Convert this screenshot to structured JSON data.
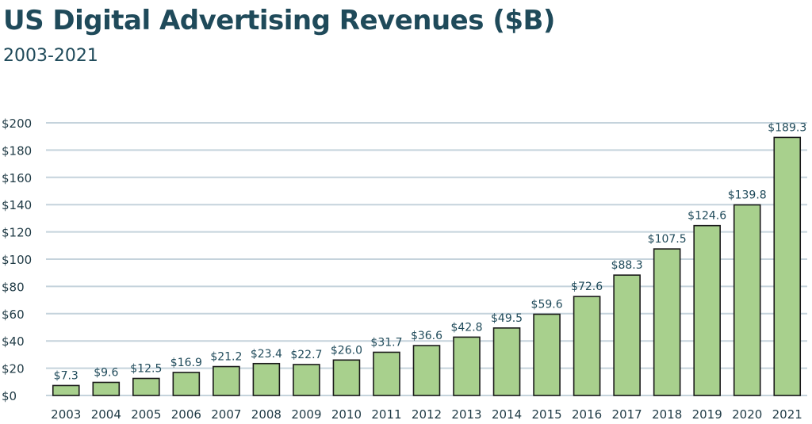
{
  "title": "US Digital Advertising Revenues ($B)",
  "subtitle": "2003-2021",
  "colors": {
    "bar_fill": "#a8d08d",
    "bar_edge": "#1a1a1a",
    "bar_edge_highlight": "#1f4a5a",
    "grid": "#c5d3dc",
    "text": "#1f4a5a"
  },
  "chart_data": {
    "type": "bar",
    "title": "US Digital Advertising Revenues ($B)",
    "subtitle": "2003-2021",
    "xlabel": "",
    "ylabel": "",
    "ylim": [
      0,
      200
    ],
    "yticks": [
      0,
      20,
      40,
      60,
      80,
      100,
      120,
      140,
      160,
      180,
      200
    ],
    "ytick_labels": [
      "$0",
      "$20",
      "$40",
      "$60",
      "$80",
      "$100",
      "$120",
      "$140",
      "$160",
      "$180",
      "$200"
    ],
    "grid": true,
    "categories": [
      "2003",
      "2004",
      "2005",
      "2006",
      "2007",
      "2008",
      "2009",
      "2010",
      "2011",
      "2012",
      "2013",
      "2014",
      "2015",
      "2016",
      "2017",
      "2018",
      "2019",
      "2020",
      "2021"
    ],
    "values": [
      7.3,
      9.6,
      12.5,
      16.9,
      21.2,
      23.4,
      22.7,
      26.0,
      31.7,
      36.6,
      42.8,
      49.5,
      59.6,
      72.6,
      88.3,
      107.5,
      124.6,
      139.8,
      189.3
    ],
    "data_labels": [
      "$7.3",
      "$9.6",
      "$12.5",
      "$16.9",
      "$21.2",
      "$23.4",
      "$22.7",
      "$26.0",
      "$31.7",
      "$36.6",
      "$42.8",
      "$49.5",
      "$59.6",
      "$72.6",
      "$88.3",
      "$107.5",
      "$124.6",
      "$139.8",
      "$189.3"
    ]
  }
}
